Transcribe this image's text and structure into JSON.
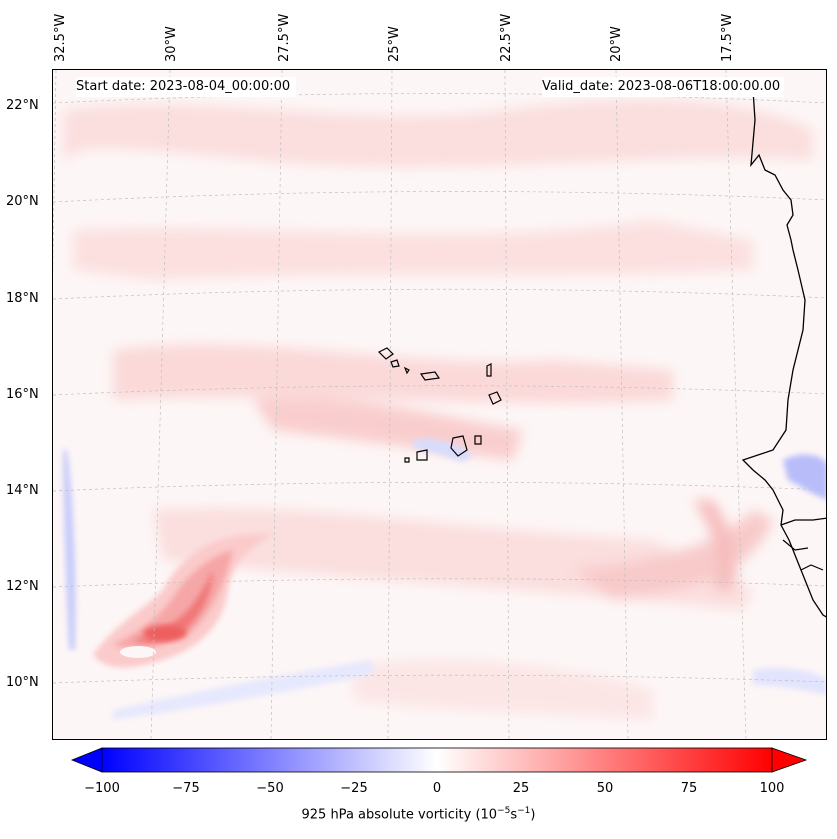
{
  "header": {
    "start_date": "Start date: 2023-08-04_00:00:00",
    "valid_date": "Valid_date: 2023-08-06T18:00:00.00"
  },
  "map": {
    "projection": "lambert-conformal",
    "field": "925 hPa absolute vorticity",
    "lon_labels": [
      "32.5°W",
      "30°W",
      "27.5°W",
      "25°W",
      "22.5°W",
      "20°W",
      "17.5°W"
    ],
    "lat_labels": [
      "22°N",
      "20°N",
      "18°N",
      "16°N",
      "14°N",
      "12°N",
      "10°N"
    ],
    "gridlines": "dashed-grey",
    "features": [
      "west-africa-coastline",
      "cape-verde-islands",
      "vorticity-maximum-near-11N-29W"
    ]
  },
  "colorbar": {
    "label_prefix": "925 hPa absolute vorticity (10",
    "label_exp1": "−5",
    "label_mid": "s",
    "label_exp2": "−1",
    "label_suffix": ")",
    "ticks": [
      "−100",
      "−75",
      "−50",
      "−25",
      "0",
      "25",
      "50",
      "75",
      "100"
    ],
    "vmin": -100,
    "vmax": 100,
    "extend": "both",
    "colors": {
      "neg": "#0000ff",
      "zero": "#ffffff",
      "pos": "#ff0000"
    }
  }
}
